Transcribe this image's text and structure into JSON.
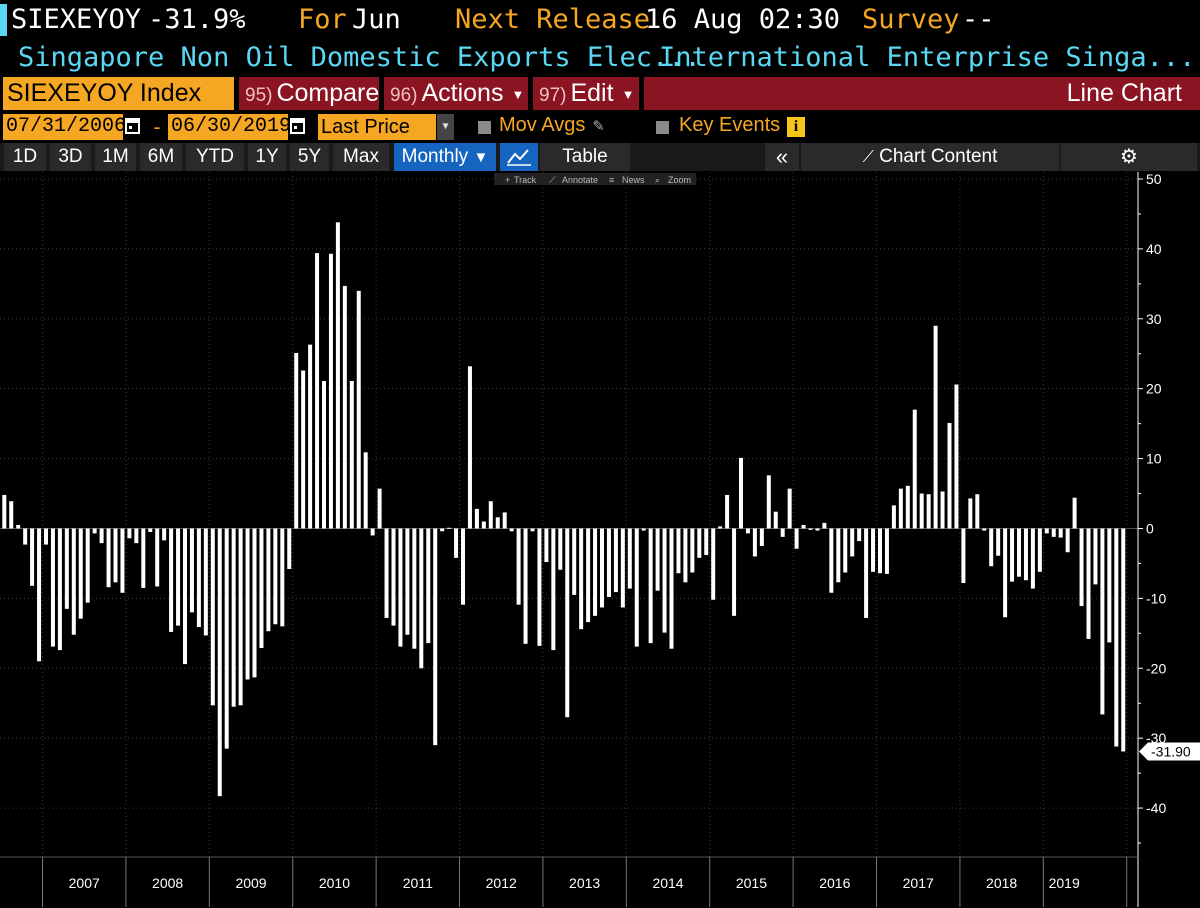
{
  "header": {
    "ticker": "SIEXEYOY",
    "value": "-31.9%",
    "for_label": "For",
    "for_value": "Jun",
    "next_release_label": "Next Release",
    "next_release_value": "16 Aug 02:30",
    "survey_label": "Survey",
    "survey_value": "--",
    "description": "Singapore Non Oil Domestic Exports Elec...",
    "source": "International Enterprise Singa..."
  },
  "toolbar": {
    "security": "SIEXEYOY Index",
    "compare_num": "95)",
    "compare": "Compare",
    "actions_num": "96)",
    "actions": "Actions",
    "edit_num": "97)",
    "edit": "Edit",
    "chart_type": "Line Chart"
  },
  "range": {
    "start": "07/31/2006",
    "dash": "-",
    "end": "06/30/2019",
    "field": "Last Price",
    "mov_avgs": "Mov Avgs",
    "key_events": "Key Events"
  },
  "periods": {
    "items": [
      "1D",
      "3D",
      "1M",
      "6M",
      "YTD",
      "1Y",
      "5Y",
      "Max"
    ],
    "frequency": "Monthly",
    "table": "Table",
    "chart_content": "Chart Content"
  },
  "tools": {
    "track": "Track",
    "annotate": "Annotate",
    "news": "News",
    "zoom": "Zoom"
  },
  "colors": {
    "accent_amber": "#f5a623",
    "cyan": "#5ad7f3",
    "toolbar_red": "#8a1421",
    "frequency_blue": "#1565c0",
    "bars": "#ffffff",
    "background": "#000000"
  },
  "chart_data": {
    "type": "bar",
    "title": "",
    "xlabel": "",
    "ylabel": "",
    "ylim": [
      -47,
      51
    ],
    "yticks": [
      50,
      40,
      30,
      20,
      10,
      0,
      -10,
      -20,
      -30,
      -40
    ],
    "year_labels": [
      "2007",
      "2008",
      "2009",
      "2010",
      "2011",
      "2012",
      "2013",
      "2014",
      "2015",
      "2016",
      "2017",
      "2018",
      "2019"
    ],
    "x_start": "2006-07",
    "x_end": "2019-06",
    "last_value_label": "-31.90",
    "grid": true,
    "values": [
      4.8,
      3.9,
      0.5,
      -2.3,
      -8.2,
      -19.0,
      -2.3,
      -16.9,
      -17.4,
      -11.5,
      -15.2,
      -12.9,
      -10.6,
      -0.7,
      -2.1,
      -8.4,
      -7.7,
      -9.2,
      -1.4,
      -2.1,
      -8.5,
      -0.5,
      -8.3,
      -1.7,
      -14.8,
      -13.9,
      -19.4,
      -12.0,
      -14.1,
      -15.3,
      -25.3,
      -38.3,
      -31.5,
      -25.5,
      -25.3,
      -21.6,
      -21.3,
      -17.1,
      -14.7,
      -13.7,
      -14.0,
      -5.8,
      25.1,
      22.6,
      26.3,
      39.4,
      21.1,
      39.3,
      43.8,
      34.7,
      21.1,
      34.0,
      10.9,
      -1.0,
      5.7,
      -12.8,
      -13.9,
      -16.9,
      -15.2,
      -17.2,
      -20.0,
      -16.4,
      -31.0,
      -0.4,
      0.1,
      -4.2,
      -10.9,
      23.2,
      2.8,
      1.0,
      3.9,
      1.6,
      2.3,
      -0.4,
      -10.9,
      -16.5,
      -0.4,
      -16.8,
      -4.8,
      -17.4,
      -5.9,
      -27.0,
      -9.5,
      -14.4,
      -13.4,
      -12.5,
      -11.3,
      -9.8,
      -9.1,
      -11.3,
      -8.6,
      -16.9,
      -0.3,
      -16.4,
      -8.9,
      -14.9,
      -17.2,
      -6.4,
      -7.7,
      -6.3,
      -4.2,
      -3.8,
      -10.2,
      0.3,
      4.8,
      -12.5,
      10.1,
      -0.7,
      -4.0,
      -2.5,
      7.6,
      2.4,
      -1.2,
      5.7,
      -2.9,
      0.5,
      -0.2,
      -0.3,
      0.8,
      -9.2,
      -7.7,
      -6.3,
      -4.0,
      -1.8,
      -12.8,
      -6.2,
      -6.4,
      -6.5,
      3.3,
      5.7,
      6.1,
      17.0,
      5.0,
      4.9,
      29.0,
      5.3,
      15.1,
      20.6,
      -7.8,
      4.3,
      4.9,
      -0.3,
      -5.4,
      -3.9,
      -12.7,
      -7.6,
      -6.9,
      -7.4,
      -8.6,
      -6.2,
      -0.7,
      -1.2,
      -1.3,
      -3.4,
      4.4,
      -11.1,
      -15.8,
      -8.0,
      -26.6,
      -16.3,
      -31.2,
      -31.9
    ]
  }
}
